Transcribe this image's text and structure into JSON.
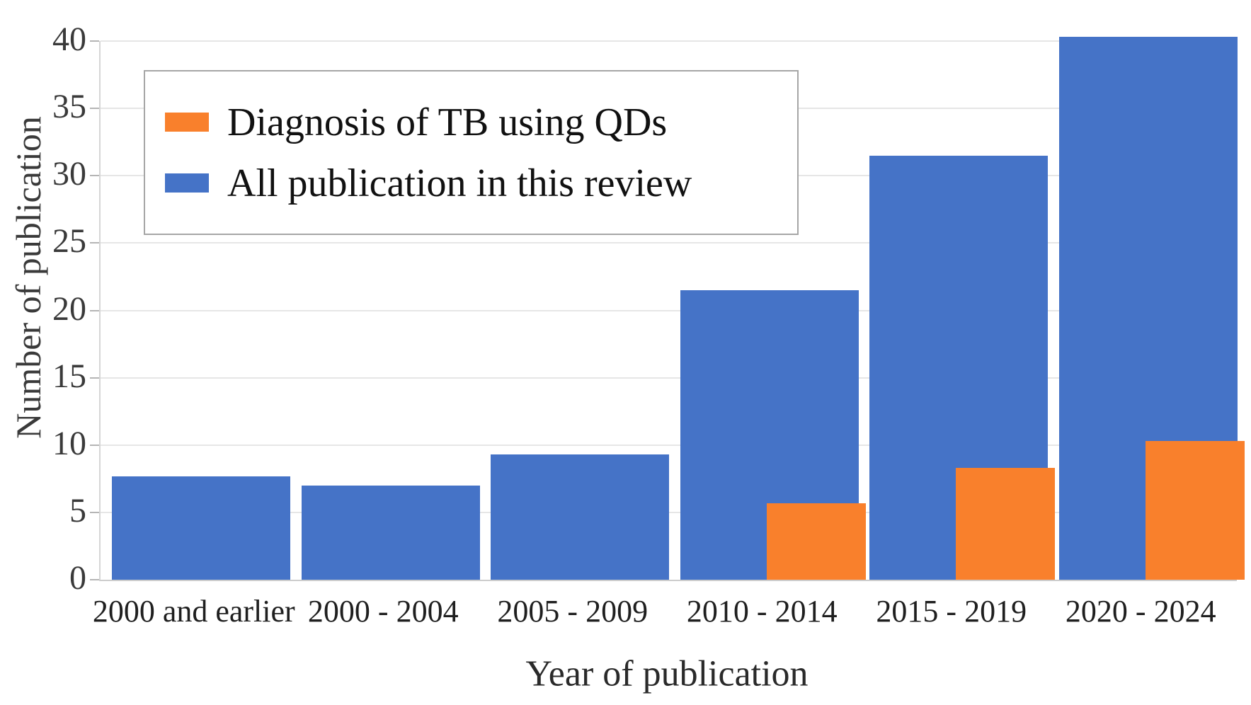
{
  "chart_data": {
    "type": "bar",
    "title": "",
    "xlabel": "Year of publication",
    "ylabel": "Number of publication",
    "categories": [
      "2000 and earlier",
      "2000 - 2004",
      "2005 - 2009",
      "2010 - 2014",
      "2015 - 2019",
      "2020 - 2024"
    ],
    "series": [
      {
        "name": "Diagnosis of TB using QDs",
        "color": "#F9802C",
        "values": [
          0,
          0,
          0,
          5.7,
          8.3,
          10.3
        ]
      },
      {
        "name": "All publication in this review",
        "color": "#4573C7",
        "values": [
          7.7,
          7.0,
          9.3,
          21.5,
          31.5,
          40.3
        ]
      }
    ],
    "ylim": [
      0,
      40
    ],
    "yticks": [
      0,
      5,
      10,
      15,
      20,
      25,
      30,
      35,
      40
    ],
    "grid": "horizontal",
    "legend_position": "top-left",
    "bar_style": "overlapped, orange series drawn in front on right half of slot",
    "note_last_blue_bar": "exceeds top gridline (40)"
  },
  "colors": {
    "background": "#FFFFFF",
    "gridline": "#E6E6E6",
    "axis_line": "#CCCCCC",
    "tick_mark": "#B5B5B5",
    "text": "#1F1F1F"
  }
}
